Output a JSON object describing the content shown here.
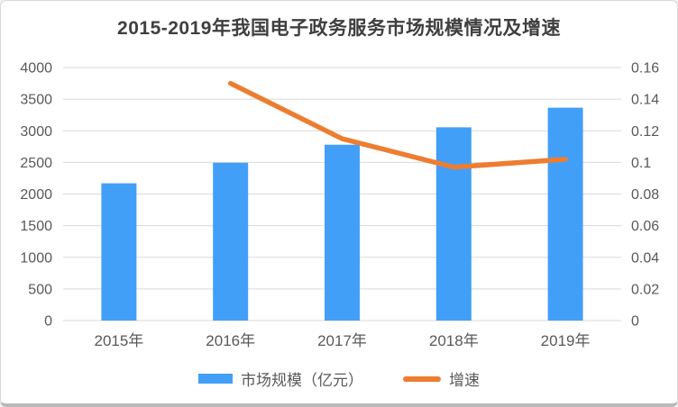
{
  "title": "2015-2019年我国电子政务服务市场规模情况及增速",
  "legend": {
    "items": [
      {
        "label": "市场规模（亿元）",
        "type": "bar",
        "color": "#429ff8"
      },
      {
        "label": "增速",
        "type": "line",
        "color": "#ed7d31"
      }
    ]
  },
  "colors": {
    "bar": "#429ff8",
    "line": "#ed7d31",
    "grid": "#d9d9d9",
    "axis_text": "#595959",
    "title_text": "#3f3f3f",
    "background": "#ffffff",
    "frame_border": "#d9d9d9"
  },
  "chart_data": {
    "type": "bar+line",
    "title": "2015-2019年我国电子政务服务市场规模情况及增速",
    "categories": [
      "2015年",
      "2016年",
      "2017年",
      "2018年",
      "2019年"
    ],
    "series": [
      {
        "name": "市场规模（亿元）",
        "type": "bar",
        "axis": "left",
        "color": "#429ff8",
        "values": [
          2170,
          2495,
          2780,
          3055,
          3365
        ]
      },
      {
        "name": "增速",
        "type": "line",
        "axis": "right",
        "color": "#ed7d31",
        "values": [
          null,
          0.15,
          0.115,
          0.097,
          0.102
        ]
      }
    ],
    "left_axis": {
      "min": 0,
      "max": 4000,
      "step": 500,
      "ticks": [
        "0",
        "500",
        "1000",
        "1500",
        "2000",
        "2500",
        "3000",
        "3500",
        "4000"
      ]
    },
    "right_axis": {
      "min": 0,
      "max": 0.16,
      "step": 0.02,
      "ticks": [
        "0",
        "0.02",
        "0.04",
        "0.06",
        "0.08",
        "0.1",
        "0.12",
        "0.14",
        "0.16"
      ]
    },
    "grid": true,
    "legend_position": "bottom"
  }
}
